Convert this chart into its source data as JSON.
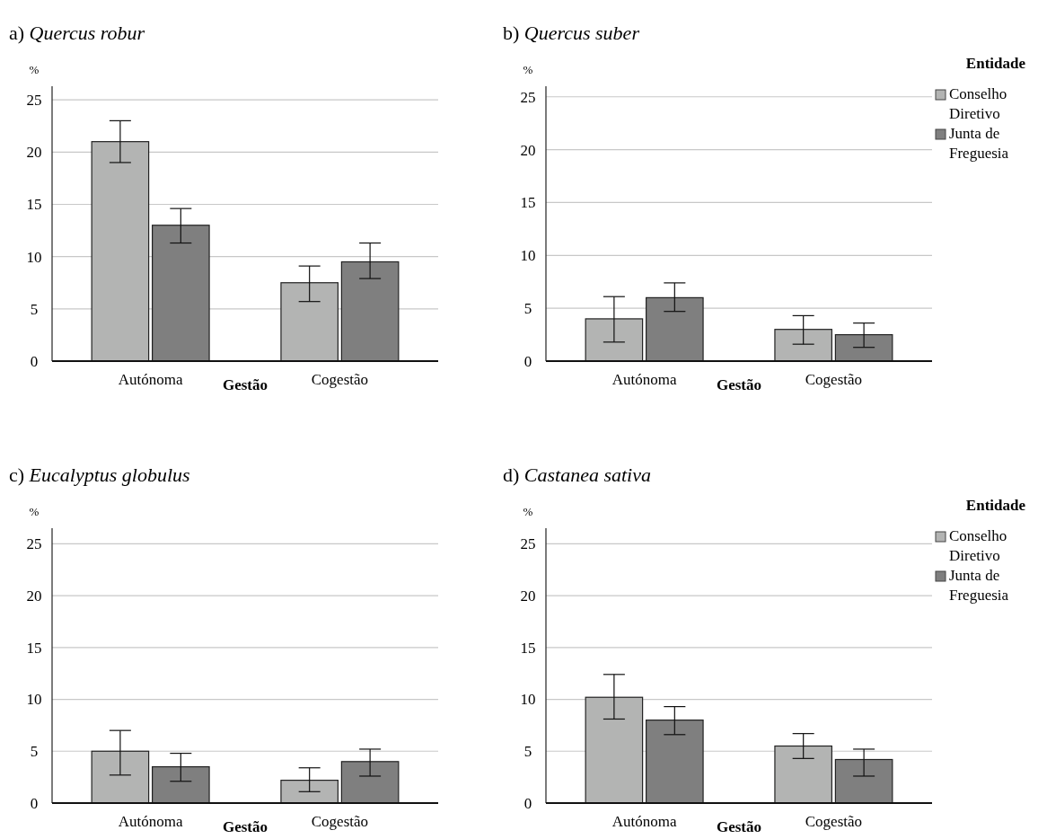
{
  "chart_data": [
    {
      "type": "bar",
      "title": "a) Quercus robur",
      "xlabel": "Gestão",
      "ylabel": "%",
      "categories": [
        "Autónoma",
        "Cogestão"
      ],
      "series": [
        {
          "color": "#b3b4b3",
          "values": [
            21,
            7.5
          ],
          "errors": [
            [
              19,
              23
            ],
            [
              5.7,
              9.1
            ]
          ]
        },
        {
          "color": "#7f7f7f",
          "values": [
            13,
            9.5
          ],
          "errors": [
            [
              11.3,
              14.6
            ],
            [
              7.9,
              11.3
            ]
          ]
        }
      ],
      "ylim": [
        0,
        26.3
      ],
      "yticks": [
        0,
        5,
        10,
        15,
        20,
        25
      ],
      "grid": "y",
      "legend": false
    },
    {
      "type": "bar",
      "title": "b) Quercus suber",
      "xlabel": "Gestão",
      "ylabel": "%",
      "legend_title": "Entidade",
      "categories": [
        "Autónoma",
        "Cogestão"
      ],
      "series": [
        {
          "name": "Conselho Diretivo",
          "color": "#b3b4b3",
          "values": [
            4,
            3
          ],
          "errors": [
            [
              1.8,
              6.1
            ],
            [
              1.6,
              4.3
            ]
          ]
        },
        {
          "name": "Junta de Freguesia",
          "color": "#7f7f7f",
          "values": [
            6,
            2.5
          ],
          "errors": [
            [
              4.7,
              7.4
            ],
            [
              1.3,
              3.6
            ]
          ]
        }
      ],
      "ylim": [
        0,
        26
      ],
      "yticks": [
        0,
        5,
        10,
        15,
        20,
        25
      ],
      "grid": "y",
      "legend": "top right"
    },
    {
      "type": "bar",
      "title": "c) Eucalyptus globulus",
      "xlabel": "Gestão",
      "ylabel": "%",
      "categories": [
        "Autónoma",
        "Cogestão"
      ],
      "series": [
        {
          "color": "#b3b4b3",
          "values": [
            5,
            2.2
          ],
          "errors": [
            [
              2.7,
              7
            ],
            [
              1.1,
              3.4
            ]
          ]
        },
        {
          "color": "#7f7f7f",
          "values": [
            3.5,
            4
          ],
          "errors": [
            [
              2.1,
              4.8
            ],
            [
              2.6,
              5.2
            ]
          ]
        }
      ],
      "ylim": [
        0,
        26.5
      ],
      "yticks": [
        0,
        5,
        10,
        15,
        20,
        25
      ],
      "grid": "y",
      "legend": false
    },
    {
      "type": "bar",
      "title": "d) Castanea sativa",
      "xlabel": "Gestão",
      "ylabel": "%",
      "legend_title": "Entidade",
      "categories": [
        "Autónoma",
        "Cogestão"
      ],
      "series": [
        {
          "name": "Conselho Diretivo",
          "color": "#b3b4b3",
          "values": [
            10.2,
            5.5
          ],
          "errors": [
            [
              8.1,
              12.4
            ],
            [
              4.3,
              6.7
            ]
          ]
        },
        {
          "name": "Junta de Freguesia",
          "color": "#7f7f7f",
          "values": [
            8,
            4.2
          ],
          "errors": [
            [
              6.6,
              9.3
            ],
            [
              2.6,
              5.2
            ]
          ]
        }
      ],
      "ylim": [
        0,
        26.5
      ],
      "yticks": [
        0,
        5,
        10,
        15,
        20,
        25
      ],
      "grid": "y",
      "legend": "top right"
    }
  ]
}
